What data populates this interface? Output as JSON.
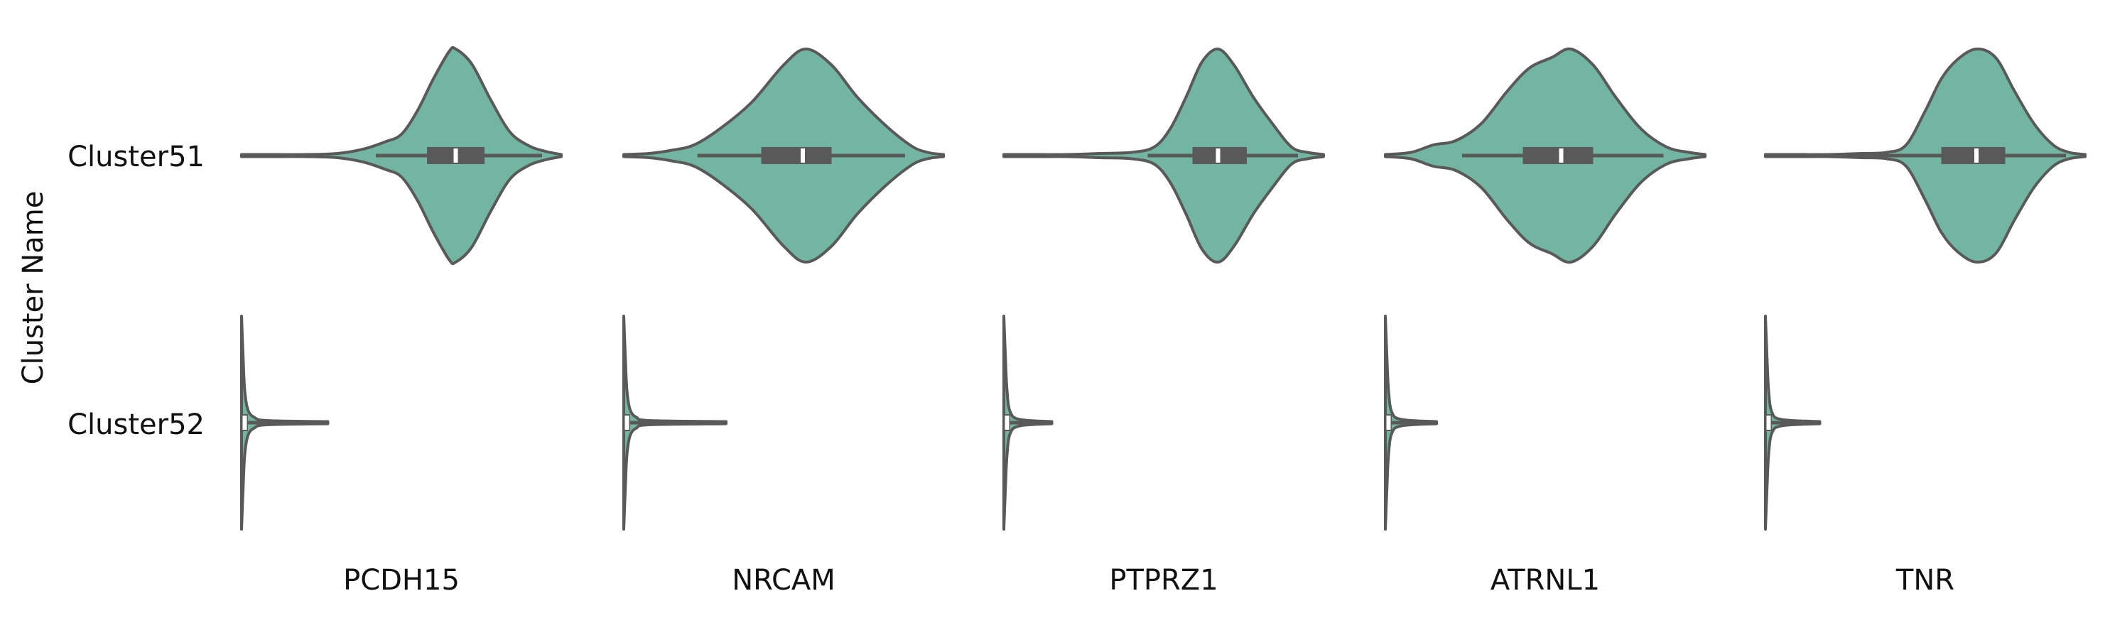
{
  "chart_data": {
    "type": "violin",
    "ylabel": "Cluster Name",
    "categories": [
      "Cluster51",
      "Cluster52"
    ],
    "colors": {
      "fill": "#72b6a1",
      "edge": "#595959",
      "median": "#ffffff"
    },
    "genes": [
      {
        "name": "PCDH15",
        "x_range": [
          0,
          1
        ],
        "series": [
          {
            "cluster": "Cluster51",
            "range": [
              0.0,
              1.0
            ],
            "whisker": [
              0.42,
              0.94
            ],
            "q1": 0.58,
            "median": 0.67,
            "q3": 0.76,
            "density": [
              [
                0.0,
                0.01
              ],
              [
                0.1,
                0.01
              ],
              [
                0.2,
                0.01
              ],
              [
                0.3,
                0.02
              ],
              [
                0.38,
                0.06
              ],
              [
                0.45,
                0.13
              ],
              [
                0.5,
                0.2
              ],
              [
                0.55,
                0.42
              ],
              [
                0.6,
                0.72
              ],
              [
                0.65,
                0.98
              ],
              [
                0.67,
                1.0
              ],
              [
                0.72,
                0.86
              ],
              [
                0.78,
                0.52
              ],
              [
                0.84,
                0.22
              ],
              [
                0.9,
                0.09
              ],
              [
                0.95,
                0.04
              ],
              [
                1.0,
                0.01
              ]
            ]
          },
          {
            "cluster": "Cluster52",
            "range": [
              0.0,
              0.27
            ],
            "whisker": [
              0.0,
              0.27
            ],
            "q1": 0.0,
            "median": 0.01,
            "q3": 0.02,
            "outliers": [
              0.16
            ],
            "density": [
              [
                0.0,
                1.0
              ],
              [
                0.005,
                0.6
              ],
              [
                0.01,
                0.3
              ],
              [
                0.02,
                0.12
              ],
              [
                0.04,
                0.05
              ],
              [
                0.08,
                0.02
              ],
              [
                0.27,
                0.01
              ]
            ]
          }
        ]
      },
      {
        "name": "NRCAM",
        "x_range": [
          0,
          1
        ],
        "series": [
          {
            "cluster": "Cluster51",
            "range": [
              0.0,
              1.0
            ],
            "whisker": [
              0.23,
              0.88
            ],
            "q1": 0.43,
            "median": 0.56,
            "q3": 0.65,
            "density": [
              [
                0.0,
                0.01
              ],
              [
                0.08,
                0.02
              ],
              [
                0.15,
                0.05
              ],
              [
                0.22,
                0.1
              ],
              [
                0.3,
                0.25
              ],
              [
                0.4,
                0.5
              ],
              [
                0.5,
                0.85
              ],
              [
                0.57,
                1.0
              ],
              [
                0.65,
                0.85
              ],
              [
                0.73,
                0.55
              ],
              [
                0.82,
                0.28
              ],
              [
                0.9,
                0.09
              ],
              [
                0.95,
                0.03
              ],
              [
                1.0,
                0.01
              ]
            ]
          },
          {
            "cluster": "Cluster52",
            "range": [
              0.0,
              0.32
            ],
            "whisker": [
              0.0,
              0.32
            ],
            "q1": 0.0,
            "median": 0.01,
            "q3": 0.02,
            "outliers": [
              0.16
            ],
            "density": [
              [
                0.0,
                1.0
              ],
              [
                0.005,
                0.6
              ],
              [
                0.01,
                0.3
              ],
              [
                0.02,
                0.12
              ],
              [
                0.04,
                0.05
              ],
              [
                0.08,
                0.02
              ],
              [
                0.32,
                0.01
              ]
            ]
          }
        ]
      },
      {
        "name": "PTPRZ1",
        "x_range": [
          0,
          1
        ],
        "series": [
          {
            "cluster": "Cluster51",
            "range": [
              0.0,
              1.0
            ],
            "whisker": [
              0.45,
              0.92
            ],
            "q1": 0.59,
            "median": 0.67,
            "q3": 0.76,
            "density": [
              [
                0.0,
                0.01
              ],
              [
                0.1,
                0.01
              ],
              [
                0.2,
                0.01
              ],
              [
                0.3,
                0.02
              ],
              [
                0.4,
                0.03
              ],
              [
                0.47,
                0.08
              ],
              [
                0.52,
                0.25
              ],
              [
                0.57,
                0.55
              ],
              [
                0.62,
                0.88
              ],
              [
                0.67,
                1.0
              ],
              [
                0.72,
                0.85
              ],
              [
                0.78,
                0.55
              ],
              [
                0.84,
                0.3
              ],
              [
                0.9,
                0.08
              ],
              [
                0.95,
                0.03
              ],
              [
                1.0,
                0.01
              ]
            ]
          },
          {
            "cluster": "Cluster52",
            "range": [
              0.0,
              0.15
            ],
            "whisker": [
              0.0,
              0.15
            ],
            "q1": 0.0,
            "median": 0.01,
            "q3": 0.02,
            "density": [
              [
                0.0,
                1.0
              ],
              [
                0.005,
                0.6
              ],
              [
                0.01,
                0.3
              ],
              [
                0.02,
                0.1
              ],
              [
                0.05,
                0.03
              ],
              [
                0.15,
                0.01
              ]
            ]
          }
        ]
      },
      {
        "name": "ATRNL1",
        "x_range": [
          0,
          1
        ],
        "series": [
          {
            "cluster": "Cluster51",
            "range": [
              0.0,
              1.0
            ],
            "whisker": [
              0.24,
              0.87
            ],
            "q1": 0.43,
            "median": 0.55,
            "q3": 0.65,
            "density": [
              [
                0.0,
                0.01
              ],
              [
                0.08,
                0.03
              ],
              [
                0.15,
                0.1
              ],
              [
                0.22,
                0.14
              ],
              [
                0.3,
                0.3
              ],
              [
                0.38,
                0.6
              ],
              [
                0.45,
                0.82
              ],
              [
                0.52,
                0.92
              ],
              [
                0.58,
                1.0
              ],
              [
                0.65,
                0.85
              ],
              [
                0.72,
                0.55
              ],
              [
                0.8,
                0.25
              ],
              [
                0.88,
                0.08
              ],
              [
                0.95,
                0.03
              ],
              [
                1.0,
                0.01
              ]
            ]
          },
          {
            "cluster": "Cluster52",
            "range": [
              0.0,
              0.16
            ],
            "whisker": [
              0.0,
              0.16
            ],
            "q1": 0.0,
            "median": 0.01,
            "q3": 0.02,
            "density": [
              [
                0.0,
                1.0
              ],
              [
                0.005,
                0.6
              ],
              [
                0.01,
                0.3
              ],
              [
                0.02,
                0.1
              ],
              [
                0.05,
                0.03
              ],
              [
                0.16,
                0.01
              ]
            ]
          }
        ]
      },
      {
        "name": "TNR",
        "x_range": [
          0,
          1
        ],
        "series": [
          {
            "cluster": "Cluster51",
            "range": [
              0.0,
              1.0
            ],
            "whisker": [
              0.0,
              0.94
            ],
            "q1": 0.55,
            "median": 0.66,
            "q3": 0.75,
            "density": [
              [
                0.0,
                0.01
              ],
              [
                0.1,
                0.01
              ],
              [
                0.2,
                0.01
              ],
              [
                0.3,
                0.02
              ],
              [
                0.38,
                0.03
              ],
              [
                0.44,
                0.1
              ],
              [
                0.5,
                0.42
              ],
              [
                0.55,
                0.72
              ],
              [
                0.6,
                0.9
              ],
              [
                0.66,
                1.0
              ],
              [
                0.72,
                0.92
              ],
              [
                0.78,
                0.6
              ],
              [
                0.84,
                0.3
              ],
              [
                0.9,
                0.1
              ],
              [
                0.95,
                0.03
              ],
              [
                1.0,
                0.01
              ]
            ]
          },
          {
            "cluster": "Cluster52",
            "range": [
              0.0,
              0.17
            ],
            "whisker": [
              0.0,
              0.17
            ],
            "q1": 0.0,
            "median": 0.01,
            "q3": 0.02,
            "density": [
              [
                0.0,
                1.0
              ],
              [
                0.005,
                0.6
              ],
              [
                0.01,
                0.3
              ],
              [
                0.02,
                0.1
              ],
              [
                0.05,
                0.03
              ],
              [
                0.17,
                0.01
              ]
            ]
          }
        ]
      }
    ]
  }
}
